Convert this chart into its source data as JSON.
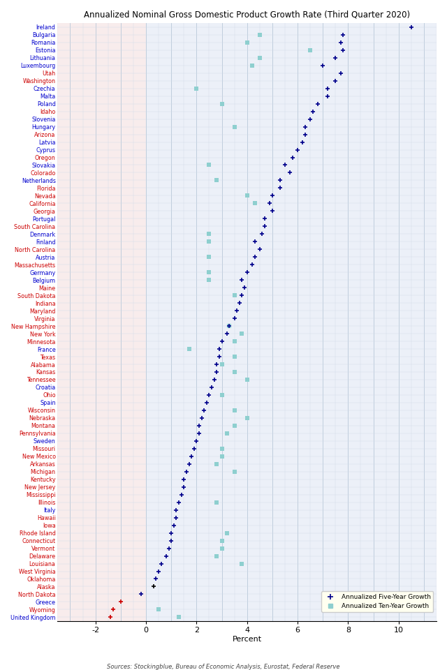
{
  "title": "Annualized Nominal Gross Domestic Product Growth Rate (Third Quarter 2020)",
  "xlabel": "Percent",
  "source": "Sources: Stockingblue, Bureau of Economic Analysis, Eurostat, Federal Reserve",
  "xlim": [
    -3.5,
    11.5
  ],
  "xticks": [
    -2,
    0,
    2,
    4,
    6,
    8,
    10
  ],
  "legend_five": "Annualized Five-Year Growth",
  "legend_ten": "Annualized Ten-Year Growth",
  "eu_countries": [
    "Ireland",
    "Bulgaria",
    "Romania",
    "Estonia",
    "Lithuania",
    "Luxembourg",
    "Czechia",
    "Malta",
    "Poland",
    "Slovenia",
    "Hungary",
    "Latvia",
    "Cyprus",
    "Slovakia",
    "Netherlands",
    "Denmark",
    "Finland",
    "Austria",
    "Germany",
    "Belgium",
    "France",
    "Croatia",
    "Spain",
    "Sweden",
    "Italy",
    "Portugal",
    "Greece",
    "United Kingdom"
  ],
  "chart_data": [
    [
      "Ireland",
      10.5,
      null
    ],
    [
      "Bulgaria",
      7.8,
      4.5
    ],
    [
      "Romania",
      7.7,
      4.0
    ],
    [
      "Estonia",
      7.8,
      6.5
    ],
    [
      "Lithuania",
      7.5,
      4.5
    ],
    [
      "Luxembourg",
      7.0,
      4.2
    ],
    [
      "Utah",
      7.7,
      null
    ],
    [
      "Washington",
      7.5,
      null
    ],
    [
      "Czechia",
      7.2,
      2.0
    ],
    [
      "Malta",
      7.2,
      null
    ],
    [
      "Poland",
      6.8,
      3.0
    ],
    [
      "Idaho",
      6.6,
      null
    ],
    [
      "Slovenia",
      6.5,
      null
    ],
    [
      "Hungary",
      6.3,
      3.5
    ],
    [
      "Arizona",
      6.3,
      null
    ],
    [
      "Latvia",
      6.2,
      null
    ],
    [
      "Cyprus",
      6.0,
      null
    ],
    [
      "Oregon",
      5.8,
      null
    ],
    [
      "Slovakia",
      5.5,
      2.5
    ],
    [
      "Colorado",
      5.7,
      null
    ],
    [
      "Netherlands",
      5.3,
      2.8
    ],
    [
      "Florida",
      5.3,
      null
    ],
    [
      "Nevada",
      5.0,
      4.0
    ],
    [
      "California",
      4.9,
      4.3
    ],
    [
      "Georgia",
      5.0,
      null
    ],
    [
      "Portugal",
      4.7,
      null
    ],
    [
      "South Carolina",
      4.7,
      null
    ],
    [
      "Denmark",
      4.6,
      2.5
    ],
    [
      "Finland",
      4.3,
      2.5
    ],
    [
      "North Carolina",
      4.5,
      null
    ],
    [
      "Austria",
      4.3,
      2.5
    ],
    [
      "Massachusetts",
      4.2,
      null
    ],
    [
      "Germany",
      4.0,
      2.5
    ],
    [
      "Belgium",
      3.8,
      2.5
    ],
    [
      "Maine",
      3.9,
      null
    ],
    [
      "South Dakota",
      3.8,
      3.5
    ],
    [
      "Indiana",
      3.7,
      null
    ],
    [
      "Maryland",
      3.6,
      null
    ],
    [
      "Virginia",
      3.5,
      null
    ],
    [
      "New Hampshire",
      3.3,
      3.3
    ],
    [
      "New York",
      3.2,
      3.8
    ],
    [
      "Minnesota",
      3.0,
      3.5
    ],
    [
      "France",
      2.9,
      1.7
    ],
    [
      "Texas",
      2.9,
      3.5
    ],
    [
      "Alabama",
      2.8,
      3.0
    ],
    [
      "Kansas",
      2.8,
      3.5
    ],
    [
      "Tennessee",
      2.7,
      4.0
    ],
    [
      "Croatia",
      2.6,
      null
    ],
    [
      "Ohio",
      2.5,
      3.0
    ],
    [
      "Spain",
      2.4,
      null
    ],
    [
      "Wisconsin",
      2.3,
      3.5
    ],
    [
      "Nebraska",
      2.2,
      4.0
    ],
    [
      "Montana",
      2.1,
      3.5
    ],
    [
      "Pennsylvania",
      2.1,
      3.2
    ],
    [
      "Sweden",
      2.0,
      null
    ],
    [
      "Missouri",
      1.9,
      3.0
    ],
    [
      "New Mexico",
      1.8,
      3.0
    ],
    [
      "Arkansas",
      1.7,
      2.8
    ],
    [
      "Michigan",
      1.6,
      3.5
    ],
    [
      "Kentucky",
      1.5,
      null
    ],
    [
      "New Jersey",
      1.5,
      null
    ],
    [
      "Mississippi",
      1.4,
      null
    ],
    [
      "Illinois",
      1.3,
      2.8
    ],
    [
      "Italy",
      1.2,
      null
    ],
    [
      "Hawaii",
      1.2,
      null
    ],
    [
      "Iowa",
      1.1,
      null
    ],
    [
      "Rhode Island",
      1.0,
      3.2
    ],
    [
      "Connecticut",
      1.0,
      3.0
    ],
    [
      "Vermont",
      0.9,
      3.0
    ],
    [
      "Delaware",
      0.8,
      2.8
    ],
    [
      "Louisiana",
      0.6,
      3.8
    ],
    [
      "West Virginia",
      0.5,
      null
    ],
    [
      "Oklahoma",
      0.4,
      null
    ],
    [
      "Alaska",
      0.3,
      null
    ],
    [
      "North Dakota",
      -0.2,
      null
    ],
    [
      "Greece",
      -1.0,
      null
    ],
    [
      "Wyoming",
      -1.3,
      0.5
    ],
    [
      "United Kingdom",
      -1.4,
      1.3
    ]
  ],
  "special_red_dot": [
    "Greece",
    "Wyoming",
    "United Kingdom"
  ],
  "special_black_dot": [
    "Alaska"
  ],
  "special_pink_square": [
    "Cyprus",
    "Italy",
    "Greece"
  ],
  "colors": {
    "eu_label": "#0000CD",
    "us_label": "#CC0000",
    "five_year_dot": "#00008B",
    "five_year_red": "#CC0000",
    "five_year_black": "#000000",
    "ten_year_square": "#8ECFCF",
    "ten_year_pink": "#F0B0B0",
    "bg_left": "#F8ECEC",
    "bg_right": "#ECF0F8",
    "grid_major": "#B8C8D8",
    "grid_minor": "#D0DCE8"
  }
}
